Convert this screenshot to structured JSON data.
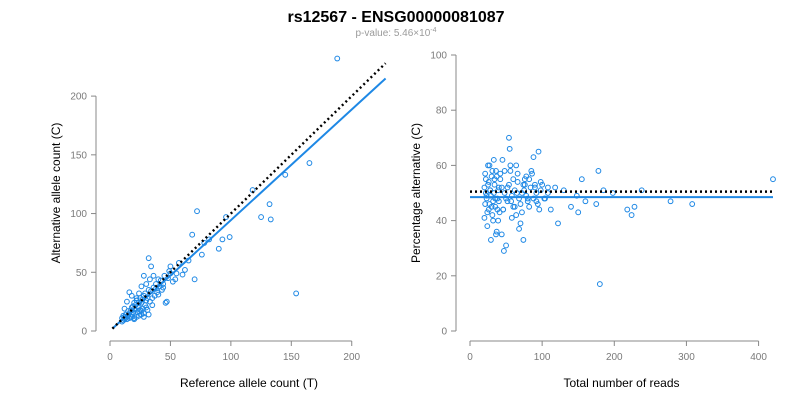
{
  "figure": {
    "title": "rs12567 - ENSG00000081087",
    "subtitle_prefix": "p-value: 5.46×10",
    "subtitle_exponent": "-4"
  },
  "colors": {
    "points": "#1e88e5",
    "fit_line": "#1e88e5",
    "reference_line": "#000000"
  },
  "chart_data": [
    {
      "type": "scatter",
      "title": "",
      "xlabel": "Reference allele count (T)",
      "ylabel": "Alternative allele count (C)",
      "xlim": [
        0,
        230
      ],
      "ylim": [
        0,
        235
      ],
      "xticks": [
        0,
        50,
        100,
        150,
        200
      ],
      "yticks": [
        0,
        50,
        100,
        150,
        200
      ],
      "grid": false,
      "lines": [
        {
          "name": "",
          "style": "solid",
          "x": [
            2,
            228
          ],
          "y": [
            2,
            215
          ]
        },
        {
          "name": "",
          "style": "dotted",
          "x": [
            2,
            228
          ],
          "y": [
            2,
            228
          ]
        }
      ],
      "points": {
        "x": [
          188,
          154,
          165,
          145,
          118,
          133,
          132,
          125,
          99,
          96,
          93,
          90,
          82,
          78,
          76,
          72,
          70,
          68,
          65,
          62,
          60,
          57,
          55,
          54,
          52,
          50,
          49,
          47,
          46,
          45,
          44,
          43,
          42,
          41,
          40,
          40,
          39,
          38,
          37,
          36,
          35,
          35,
          34,
          33,
          33,
          32,
          31,
          31,
          30,
          30,
          29,
          29,
          28,
          28,
          27,
          27,
          26,
          26,
          25,
          25,
          24,
          24,
          23,
          23,
          22,
          22,
          21,
          21,
          20,
          20,
          19,
          19,
          18,
          18,
          17,
          17,
          16,
          16,
          15,
          15,
          14,
          14,
          13,
          13,
          12,
          12,
          11,
          11,
          10,
          10,
          50,
          48,
          44,
          38,
          36,
          32,
          28,
          26,
          24,
          22,
          20,
          18,
          16,
          14,
          12,
          32,
          30,
          34,
          28,
          26,
          24,
          22,
          20,
          18
        ],
        "y": [
          232,
          32,
          143,
          133,
          120,
          95,
          108,
          97,
          80,
          97,
          78,
          70,
          78,
          75,
          65,
          102,
          44,
          82,
          60,
          52,
          48,
          58,
          49,
          44,
          42,
          49,
          51,
          25,
          24,
          47,
          40,
          35,
          43,
          38,
          44,
          31,
          33,
          40,
          30,
          37,
          28,
          22,
          34,
          25,
          44,
          35,
          18,
          28,
          26,
          20,
          32,
          22,
          30,
          15,
          27,
          19,
          24,
          14,
          28,
          18,
          24,
          13,
          21,
          16,
          26,
          12,
          22,
          18,
          19,
          11,
          16,
          21,
          14,
          20,
          12,
          17,
          15,
          11,
          13,
          17,
          12,
          10,
          14,
          11,
          12,
          10,
          13,
          9,
          11,
          8,
          55,
          45,
          37,
          36,
          47,
          14,
          12,
          17,
          17,
          26,
          10,
          30,
          33,
          25,
          19,
          62,
          40,
          55,
          47,
          38,
          32,
          28,
          24,
          12
        ]
      }
    },
    {
      "type": "scatter",
      "title": "",
      "xlabel": "Total number of reads",
      "ylabel": "Percentage alternative (C)",
      "xlim": [
        0,
        420
      ],
      "ylim": [
        0,
        100
      ],
      "xticks": [
        0,
        100,
        200,
        300,
        400
      ],
      "yticks": [
        0,
        20,
        40,
        60,
        80,
        100
      ],
      "grid": false,
      "lines": [
        {
          "name": "",
          "style": "solid",
          "x": [
            0,
            420
          ],
          "y": [
            48.5,
            48.5
          ]
        },
        {
          "name": "",
          "style": "dotted",
          "x": [
            0,
            420
          ],
          "y": [
            50.5,
            50.5
          ]
        }
      ],
      "points": {
        "x": [
          420,
          180,
          308,
          278,
          238,
          228,
          224,
          218,
          198,
          185,
          178,
          175,
          160,
          155,
          150,
          148,
          140,
          130,
          122,
          118,
          112,
          108,
          103,
          98,
          95,
          92,
          90,
          88,
          85,
          82,
          80,
          78,
          76,
          75,
          74,
          72,
          70,
          68,
          66,
          65,
          64,
          62,
          60,
          58,
          57,
          56,
          55,
          54,
          52,
          50,
          48,
          47,
          46,
          45,
          44,
          42,
          41,
          40,
          39,
          38,
          37,
          36,
          35,
          34,
          33,
          32,
          31,
          30,
          29,
          28,
          27,
          26,
          25,
          24,
          23,
          22,
          21,
          20,
          20,
          21,
          22,
          23,
          24,
          25,
          26,
          27,
          28,
          29,
          30,
          31,
          32,
          33,
          34,
          35,
          36,
          37,
          38,
          39,
          40,
          42,
          44,
          46,
          48,
          50,
          52,
          54,
          56,
          58,
          60,
          62,
          64,
          66,
          68,
          70,
          72,
          74,
          76,
          78,
          80,
          82,
          84,
          86,
          88,
          90,
          92,
          94,
          96,
          98,
          100,
          104,
          108
        ],
        "y": [
          55,
          17,
          46,
          47,
          51,
          45,
          42,
          44,
          50,
          51,
          58,
          46,
          47,
          55,
          43,
          49,
          45,
          51,
          39,
          52,
          44,
          50,
          48,
          54,
          65,
          47,
          52,
          63,
          58,
          55,
          48,
          56,
          53,
          51,
          33,
          43,
          39,
          37,
          57,
          50,
          60,
          45,
          55,
          41,
          47,
          60,
          66,
          70,
          52,
          48,
          58,
          29,
          44,
          62,
          35,
          57,
          43,
          52,
          40,
          48,
          36,
          58,
          45,
          55,
          50,
          47,
          42,
          56,
          33,
          51,
          60,
          44,
          53,
          38,
          49,
          55,
          46,
          41,
          52,
          57,
          50,
          48,
          43,
          60,
          54,
          46,
          51,
          49,
          45,
          58,
          40,
          62,
          53,
          48,
          35,
          56,
          44,
          51,
          47,
          55,
          52,
          44,
          50,
          31,
          47,
          53,
          58,
          49,
          45,
          51,
          42,
          54,
          48,
          46,
          50,
          53,
          55,
          49,
          47,
          45,
          52,
          57,
          48,
          53,
          50,
          46,
          44,
          51,
          53,
          48,
          52
        ]
      }
    }
  ]
}
